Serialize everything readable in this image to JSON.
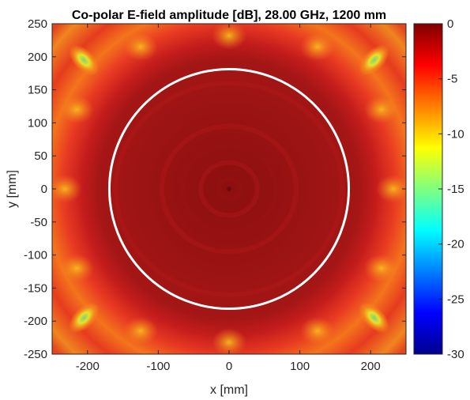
{
  "chart_data": {
    "type": "heatmap",
    "title": "Co-polar E-field amplitude [dB], 28.00 GHz, 1200 mm",
    "xlabel": "x [mm]",
    "ylabel": "y [mm]",
    "xlim": [
      -250,
      250
    ],
    "ylim": [
      -250,
      250
    ],
    "x_ticks": [
      -200,
      -100,
      0,
      100,
      200
    ],
    "y_ticks": [
      250,
      200,
      150,
      100,
      50,
      0,
      -50,
      -100,
      -150,
      -200,
      -250
    ],
    "colorbar": {
      "range": [
        -30,
        0
      ],
      "ticks": [
        0,
        -5,
        -10,
        -15,
        -20,
        -25,
        -30
      ],
      "tick_labels": [
        "0",
        "-5",
        "-10",
        "-15",
        "-20",
        "-25",
        "-30"
      ],
      "colormap": "jet"
    },
    "field": {
      "center_value_db": 0,
      "inner_region_db": -1.5,
      "ring_region_db": -4,
      "corner_lobe_db": -10,
      "corner_lobe_positions_mm": [
        [
          -205,
          195
        ],
        [
          205,
          195
        ],
        [
          -205,
          -195
        ],
        [
          205,
          -195
        ]
      ]
    },
    "overlay_circle": {
      "center_mm": [
        0,
        0
      ],
      "radius_mm": 175,
      "color": "#ffffff"
    },
    "grid": false
  }
}
